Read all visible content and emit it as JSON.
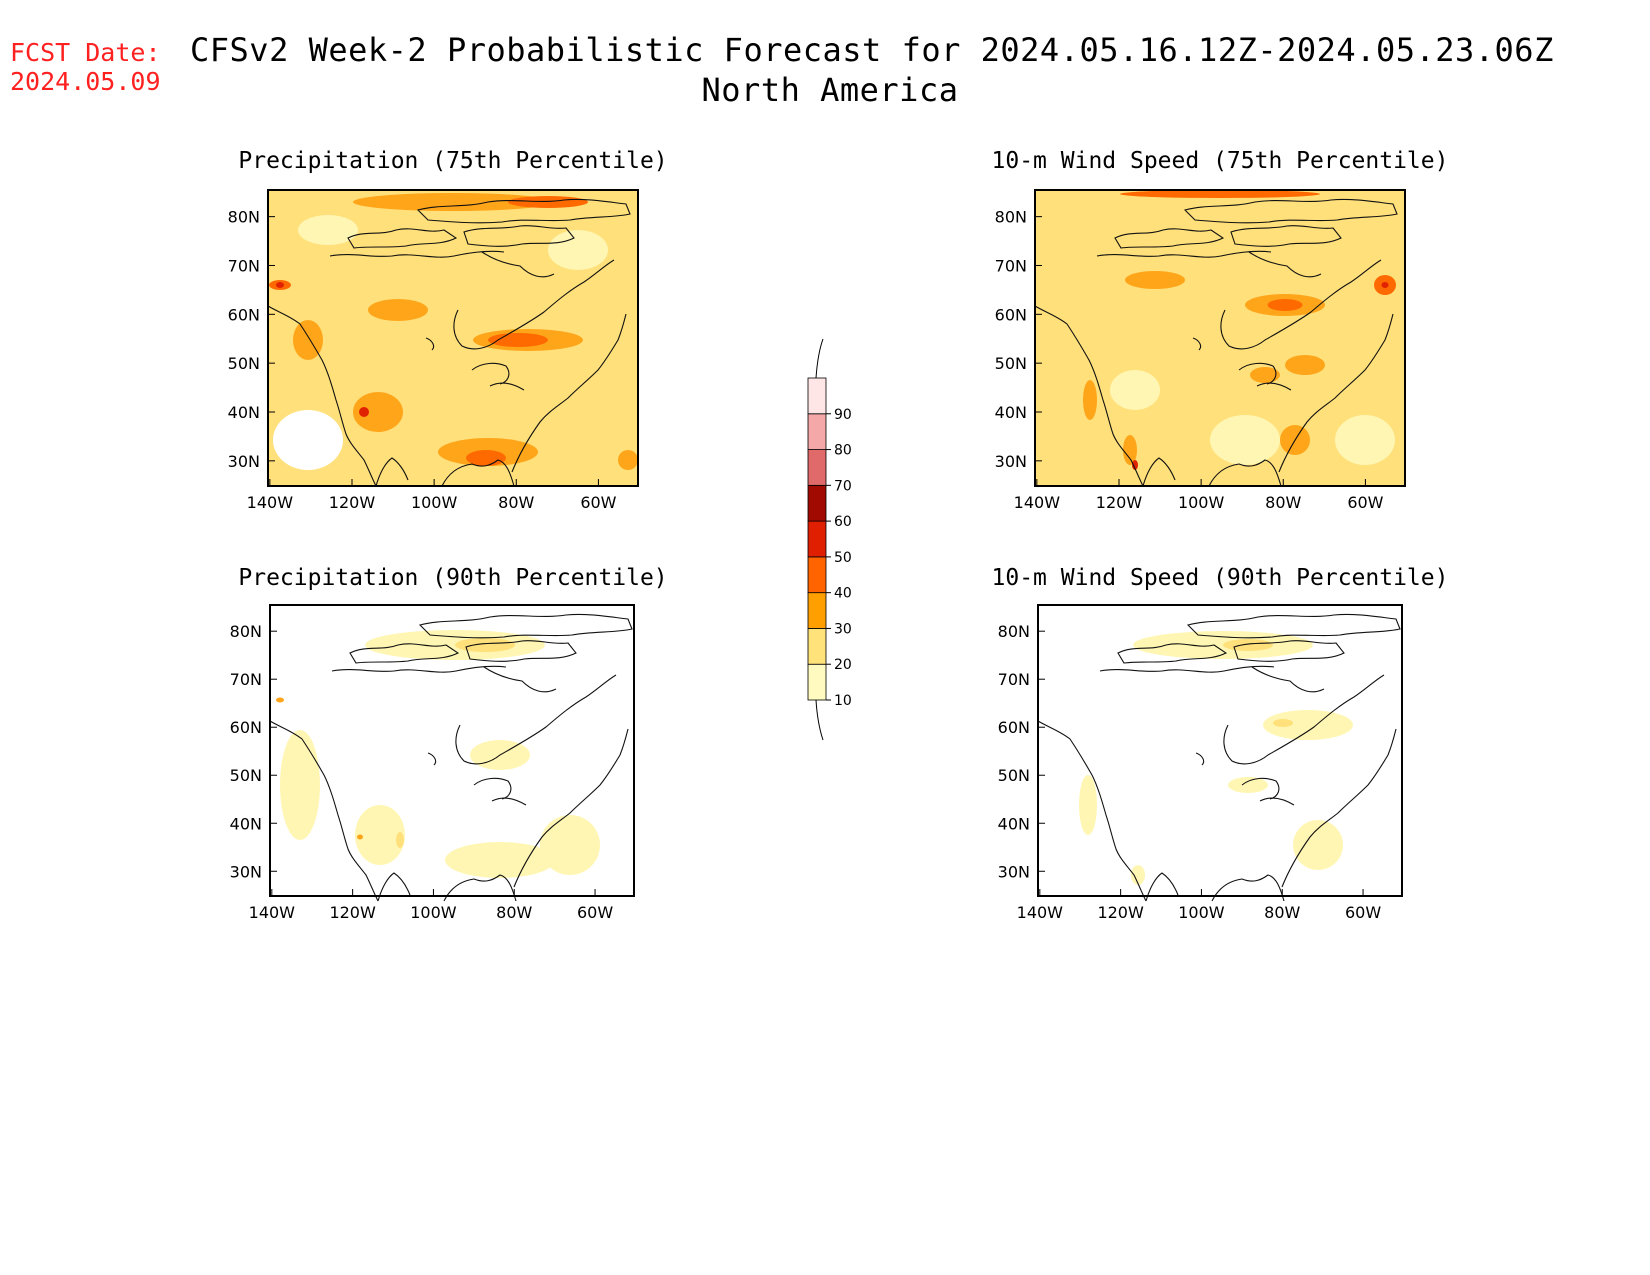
{
  "forecast_date": {
    "label": "FCST Date:",
    "value": "2024.05.09"
  },
  "header": {
    "title": "CFSv2 Week-2 Probabilistic Forecast for 2024.05.16.12Z-2024.05.23.06Z",
    "subtitle": "North America"
  },
  "panels": [
    {
      "id": "precip75",
      "title": "Precipitation (75th Percentile)"
    },
    {
      "id": "wind75",
      "title": "10-m Wind Speed (75th Percentile)"
    },
    {
      "id": "precip90",
      "title": "Precipitation (90th Percentile)"
    },
    {
      "id": "wind90",
      "title": "10-m Wind Speed (90th Percentile)"
    }
  ],
  "axes": {
    "lat_labels": [
      "80N",
      "70N",
      "60N",
      "50N",
      "40N",
      "30N"
    ],
    "lon_labels": [
      "140W",
      "120W",
      "100W",
      "80W",
      "60W"
    ]
  },
  "colorbar": {
    "levels": [
      "10",
      "20",
      "30",
      "40",
      "50",
      "60",
      "70",
      "80",
      "90"
    ],
    "colors": [
      "#fffac0",
      "#ffe27a",
      "#ffa000",
      "#ff6400",
      "#e01e00",
      "#a00a00",
      "#e06a6a",
      "#f4a8a8",
      "#ffe6e6"
    ]
  },
  "field_colors": {
    "white": "#ffffff",
    "c10": "#fff6b4",
    "c20": "#ffe07a",
    "c30": "#ffa51a",
    "c40": "#ff6a00",
    "c50": "#e02200"
  }
}
